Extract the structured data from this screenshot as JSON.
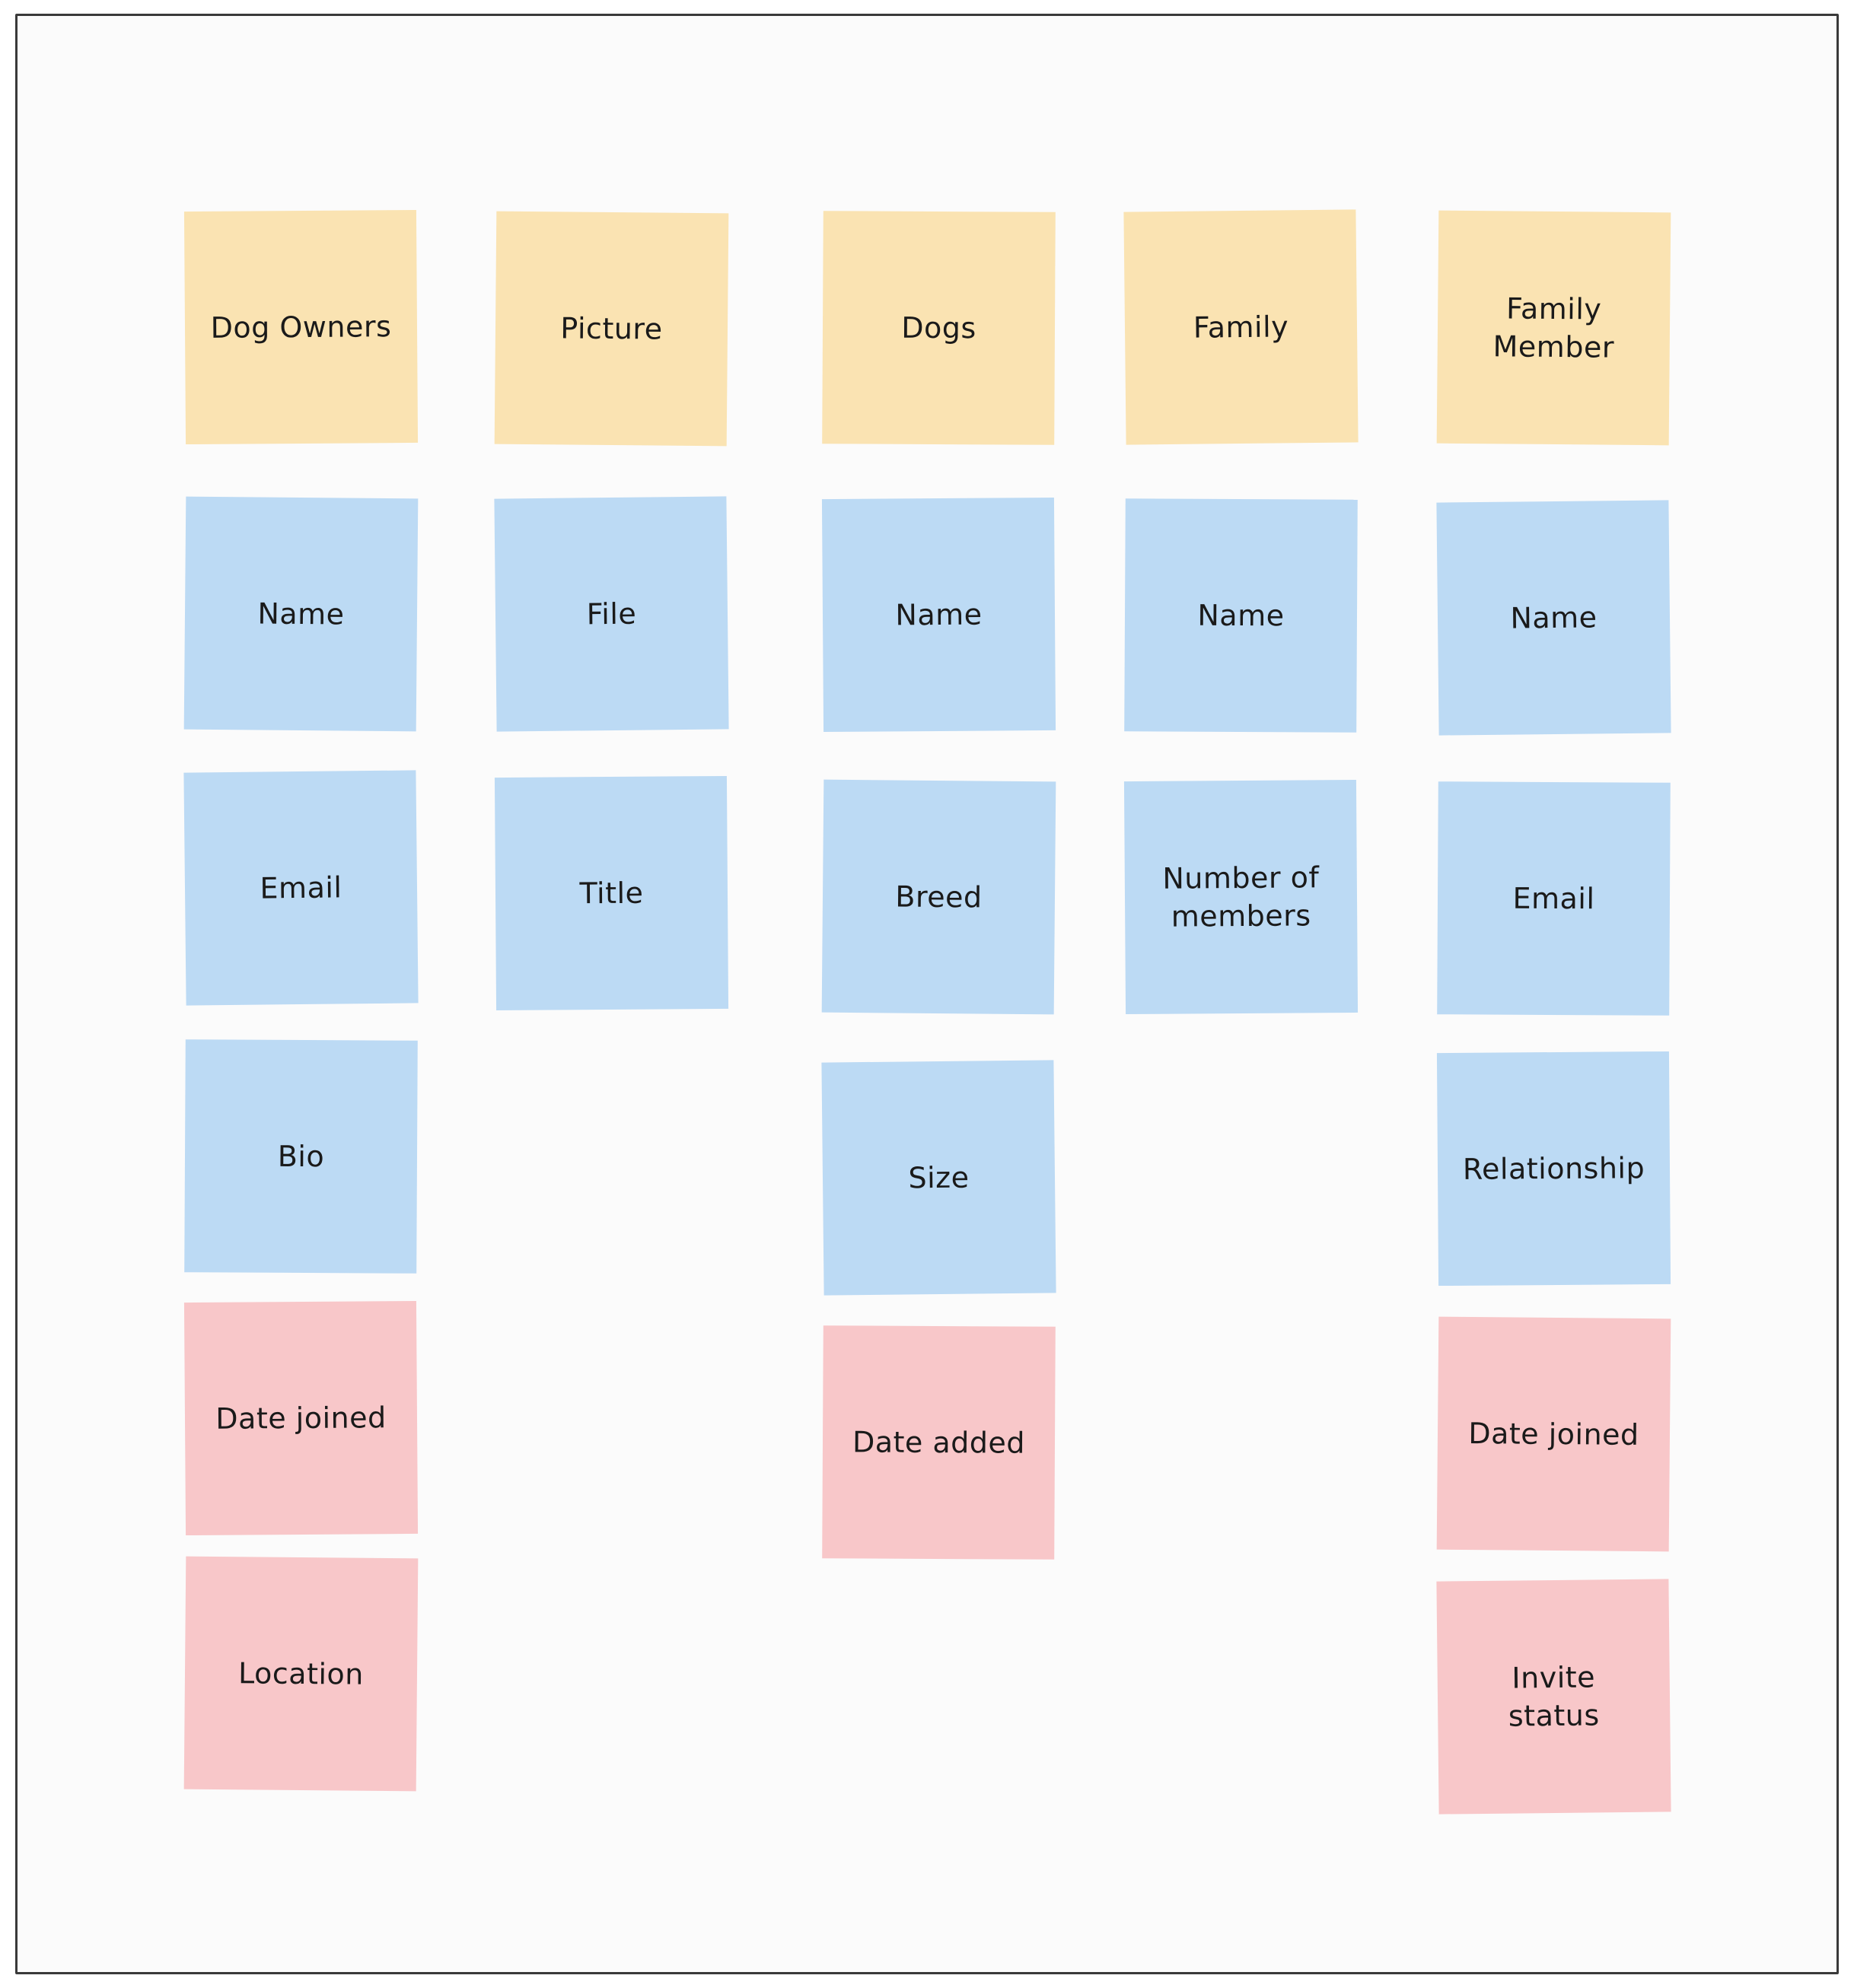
{
  "colors": {
    "entity": "#fae3b2",
    "attribute": "#bcdaf4",
    "metadata": "#f8c7c9",
    "canvas": "#fbfbfb",
    "border": "#3a3a3a"
  },
  "columns": [
    {
      "entity": "Dog Owners",
      "attributes": [
        "Name",
        "Email",
        "Bio"
      ],
      "metadata": [
        "Date joined",
        "Location"
      ]
    },
    {
      "entity": "Picture",
      "attributes": [
        "File",
        "Title"
      ],
      "metadata": []
    },
    {
      "entity": "Dogs",
      "attributes": [
        "Name",
        "Breed",
        "Size"
      ],
      "metadata": [
        "Date added"
      ]
    },
    {
      "entity": "Family",
      "attributes": [
        "Name",
        "Number of\nmembers"
      ],
      "metadata": []
    },
    {
      "entity": "Family\nMember",
      "attributes": [
        "Name",
        "Email",
        "Relationship"
      ],
      "metadata": [
        "Date joined",
        "Invite\nstatus"
      ]
    }
  ]
}
